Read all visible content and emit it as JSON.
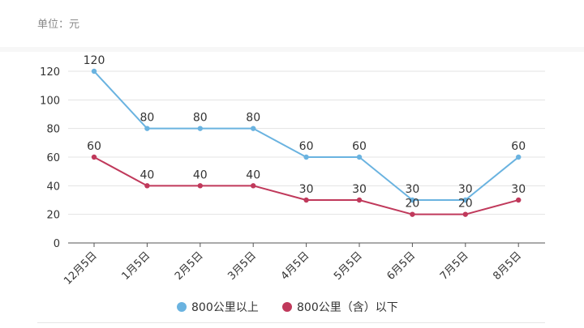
{
  "unit_label": "单位：元",
  "chart_data": {
    "type": "line",
    "categories": [
      "12月5日",
      "1月5日",
      "2月5日",
      "3月5日",
      "4月5日",
      "5月5日",
      "6月5日",
      "7月5日",
      "8月5日"
    ],
    "series": [
      {
        "name": "800公里以上",
        "color": "#6ab3e0",
        "values": [
          120,
          80,
          80,
          80,
          60,
          60,
          30,
          30,
          60
        ]
      },
      {
        "name": "800公里（含）以下",
        "color": "#c0395b",
        "values": [
          60,
          40,
          40,
          40,
          30,
          30,
          20,
          20,
          30
        ]
      }
    ],
    "ylim": [
      0,
      120
    ],
    "yticks": [
      0,
      20,
      40,
      60,
      80,
      100,
      120
    ],
    "grid": true,
    "legend": "bottom-center",
    "data_labels": true
  }
}
